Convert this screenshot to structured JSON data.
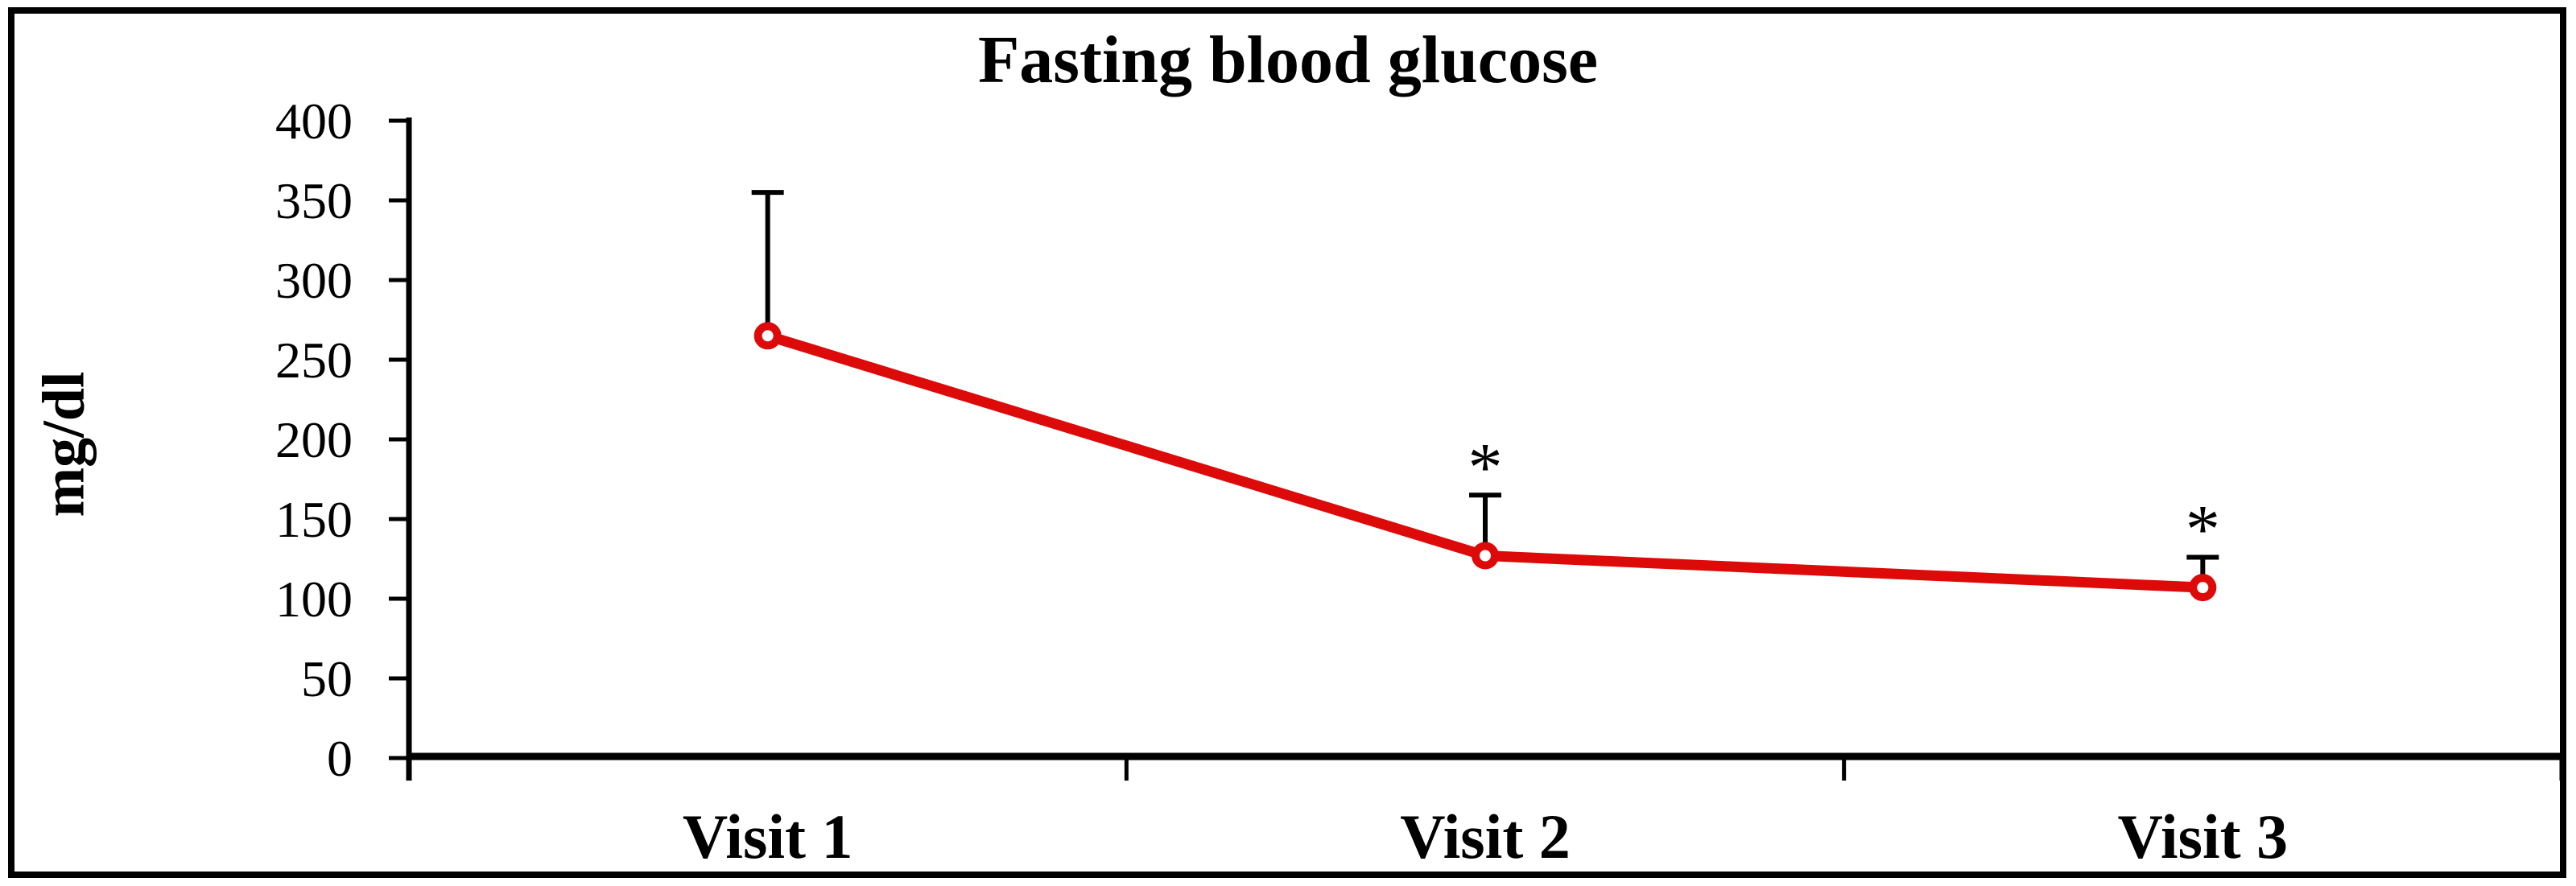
{
  "figure": {
    "background": "#ffffff",
    "border_color": "#000000"
  },
  "chart_data": {
    "type": "line",
    "title": "Fasting blood glucose",
    "xlabel": "",
    "ylabel": "mg/dl",
    "categories": [
      "Visit 1",
      "Visit 2",
      "Visit 3"
    ],
    "series": [
      {
        "name": "Fasting blood glucose",
        "color": "#DD0A0A",
        "marker": "open-circle",
        "values": [
          265,
          127,
          107
        ],
        "error_upper": [
          90,
          38,
          19
        ]
      }
    ],
    "error_bar_color": "#000000",
    "annotations": [
      {
        "category": "Visit 2",
        "text": "*"
      },
      {
        "category": "Visit 3",
        "text": "*"
      }
    ],
    "ylim": [
      0,
      400
    ],
    "ytick_step": 50,
    "yticks": [
      0,
      50,
      100,
      150,
      200,
      250,
      300,
      350,
      400
    ],
    "grid": false,
    "legend": false
  }
}
